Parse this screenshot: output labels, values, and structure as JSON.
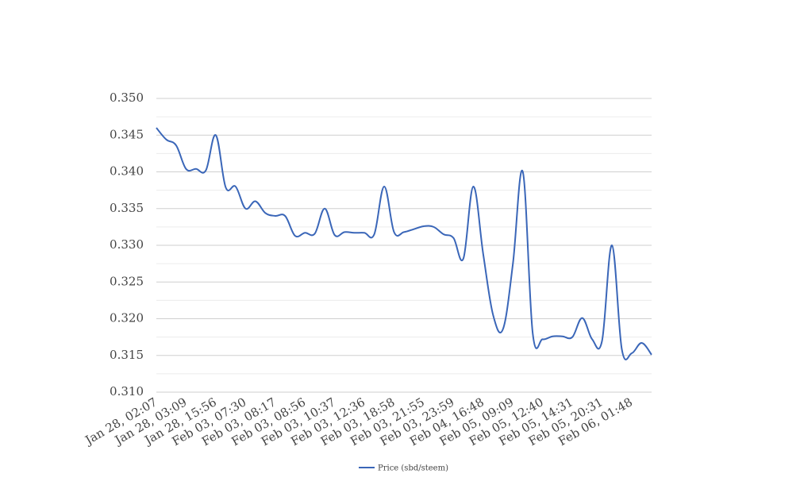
{
  "chart_data": {
    "type": "line",
    "categories": [
      "Jan 28, 02:07",
      null,
      null,
      "Jan 28, 03:09",
      null,
      null,
      "Jan 28, 15:56",
      null,
      null,
      "Feb 03, 07:30",
      null,
      null,
      "Feb 03, 08:17",
      null,
      null,
      "Feb 03, 08:56",
      null,
      null,
      "Feb 03, 10:37",
      null,
      null,
      "Feb 03, 12:36",
      null,
      null,
      "Feb 03, 18:58",
      null,
      null,
      "Feb 03, 21:55",
      null,
      null,
      "Feb 03, 23:59",
      null,
      null,
      "Feb 04, 16:48",
      null,
      null,
      "Feb 05, 09:09",
      null,
      null,
      "Feb 05, 12:40",
      null,
      null,
      "Feb 05, 14:31",
      null,
      null,
      "Feb 05, 20:31",
      null,
      null,
      "Feb 06, 01:48",
      null,
      null
    ],
    "series": [
      {
        "name": "Price (sbd/steem)",
        "color": "#3a66b8",
        "values": [
          0.346,
          0.3444,
          0.3436,
          0.3404,
          0.3404,
          0.3402,
          0.345,
          0.3379,
          0.338,
          0.335,
          0.336,
          0.3344,
          0.334,
          0.334,
          0.3313,
          0.3317,
          0.3316,
          0.335,
          0.3314,
          0.3318,
          0.3317,
          0.3317,
          0.3315,
          0.338,
          0.3318,
          0.3318,
          0.3322,
          0.3326,
          0.3325,
          0.3315,
          0.331,
          0.3282,
          0.338,
          0.3288,
          0.3205,
          0.3186,
          0.3275,
          0.34,
          0.318,
          0.3172,
          0.3176,
          0.3176,
          0.3175,
          0.3201,
          0.3172,
          0.317,
          0.33,
          0.3158,
          0.3153,
          0.3167,
          0.3151
        ]
      }
    ],
    "ylim": [
      0.31,
      0.35
    ],
    "yticks": [
      {
        "value": 0.31,
        "label": "0.310"
      },
      {
        "value": 0.315,
        "label": "0.315"
      },
      {
        "value": 0.32,
        "label": "0.320"
      },
      {
        "value": 0.325,
        "label": "0.325"
      },
      {
        "value": 0.33,
        "label": "0.330"
      },
      {
        "value": 0.335,
        "label": "0.335"
      },
      {
        "value": 0.34,
        "label": "0.340"
      },
      {
        "value": 0.345,
        "label": "0.345"
      },
      {
        "value": 0.35,
        "label": "0.350"
      }
    ],
    "minor_yticks": [
      0.3125,
      0.3175,
      0.3225,
      0.3275,
      0.3325,
      0.3375,
      0.3425,
      0.3475
    ],
    "grid": true,
    "legend": "bottom"
  }
}
